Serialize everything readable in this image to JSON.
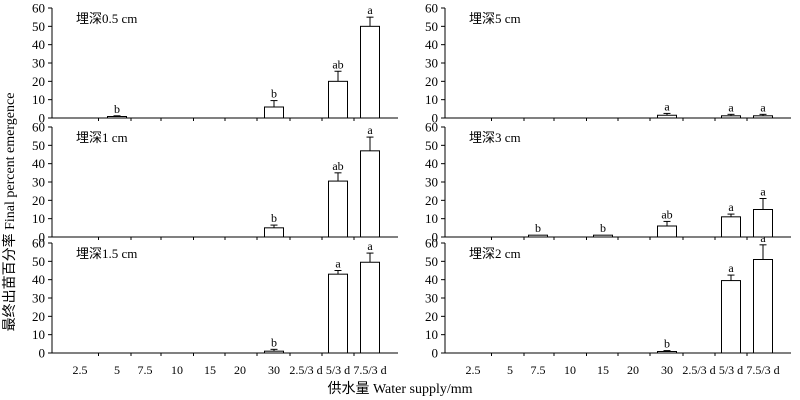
{
  "figure": {
    "ylabel": "最终出苗百分率 Final percent emergence",
    "xlabel": "供水量 Water supply/mm"
  },
  "chart_data": [
    {
      "type": "bar",
      "title": "埋深0.5 cm",
      "categories": [
        "2.5",
        "5",
        "7.5",
        "10",
        "15",
        "20",
        "30",
        "2.5/3 d",
        "5/3 d",
        "7.5/3 d"
      ],
      "values": [
        null,
        0.8,
        null,
        null,
        null,
        null,
        6,
        null,
        20,
        50
      ],
      "errors": [
        null,
        0.4,
        null,
        null,
        null,
        null,
        3.5,
        null,
        5.5,
        5
      ],
      "letters": [
        "",
        "b",
        "",
        "",
        "",
        "",
        "b",
        "",
        "ab",
        "a"
      ],
      "ylim": [
        0,
        60
      ],
      "yticks": [
        0,
        10,
        20,
        30,
        40,
        50,
        60
      ],
      "show_xticks": false
    },
    {
      "type": "bar",
      "title": "埋深5 cm",
      "categories": [
        "2.5",
        "5",
        "7.5",
        "10",
        "15",
        "20",
        "30",
        "2.5/3 d",
        "5/3 d",
        "7.5/3 d"
      ],
      "values": [
        null,
        null,
        null,
        null,
        null,
        null,
        1.5,
        null,
        1.2,
        1.2
      ],
      "errors": [
        null,
        null,
        null,
        null,
        null,
        null,
        1,
        null,
        0.8,
        0.8
      ],
      "letters": [
        "",
        "",
        "",
        "",
        "",
        "",
        "a",
        "",
        "a",
        "a"
      ],
      "ylim": [
        0,
        60
      ],
      "yticks": [
        0,
        10,
        20,
        30,
        40,
        50,
        60
      ],
      "show_xticks": false
    },
    {
      "type": "bar",
      "title": "埋深1 cm",
      "categories": [
        "2.5",
        "5",
        "7.5",
        "10",
        "15",
        "20",
        "30",
        "2.5/3 d",
        "5/3 d",
        "7.5/3 d"
      ],
      "values": [
        null,
        null,
        null,
        null,
        null,
        null,
        5,
        null,
        30.5,
        47
      ],
      "errors": [
        null,
        null,
        null,
        null,
        null,
        null,
        1.5,
        null,
        4.5,
        7.5
      ],
      "letters": [
        "",
        "",
        "",
        "",
        "",
        "",
        "b",
        "",
        "ab",
        "a"
      ],
      "ylim": [
        0,
        60
      ],
      "yticks": [
        0,
        10,
        20,
        30,
        40,
        50,
        60
      ],
      "show_xticks": false
    },
    {
      "type": "bar",
      "title": "埋深3 cm",
      "categories": [
        "2.5",
        "5",
        "7.5",
        "10",
        "15",
        "20",
        "30",
        "2.5/3 d",
        "5/3 d",
        "7.5/3 d"
      ],
      "values": [
        null,
        null,
        1,
        null,
        1,
        null,
        6,
        null,
        11,
        15
      ],
      "errors": [
        null,
        null,
        null,
        null,
        null,
        null,
        2.5,
        null,
        1.5,
        6
      ],
      "letters": [
        "",
        "",
        "b",
        "",
        "b",
        "",
        "ab",
        "",
        "a",
        "a"
      ],
      "ylim": [
        0,
        60
      ],
      "yticks": [
        0,
        10,
        20,
        30,
        40,
        50,
        60
      ],
      "show_xticks": false
    },
    {
      "type": "bar",
      "title": "埋深1.5 cm",
      "categories": [
        "2.5",
        "5",
        "7.5",
        "10",
        "15",
        "20",
        "30",
        "2.5/3 d",
        "5/3 d",
        "7.5/3 d"
      ],
      "values": [
        null,
        null,
        null,
        null,
        null,
        null,
        1,
        null,
        43,
        49.5
      ],
      "errors": [
        null,
        null,
        null,
        null,
        null,
        null,
        1,
        null,
        2,
        5
      ],
      "letters": [
        "",
        "",
        "",
        "",
        "",
        "",
        "b",
        "",
        "a",
        "a"
      ],
      "ylim": [
        0,
        60
      ],
      "yticks": [
        0,
        10,
        20,
        30,
        40,
        50,
        60
      ],
      "show_xticks": true
    },
    {
      "type": "bar",
      "title": "埋深2 cm",
      "categories": [
        "2.5",
        "5",
        "7.5",
        "10",
        "15",
        "20",
        "30",
        "2.5/3 d",
        "5/3 d",
        "7.5/3 d"
      ],
      "values": [
        null,
        null,
        null,
        null,
        null,
        null,
        0.8,
        null,
        39.5,
        51
      ],
      "errors": [
        null,
        null,
        null,
        null,
        null,
        null,
        0.5,
        null,
        3,
        8
      ],
      "letters": [
        "",
        "",
        "",
        "",
        "",
        "",
        "b",
        "",
        "a",
        "a"
      ],
      "ylim": [
        0,
        60
      ],
      "yticks": [
        0,
        10,
        20,
        30,
        40,
        50,
        60
      ],
      "show_xticks": true
    }
  ]
}
